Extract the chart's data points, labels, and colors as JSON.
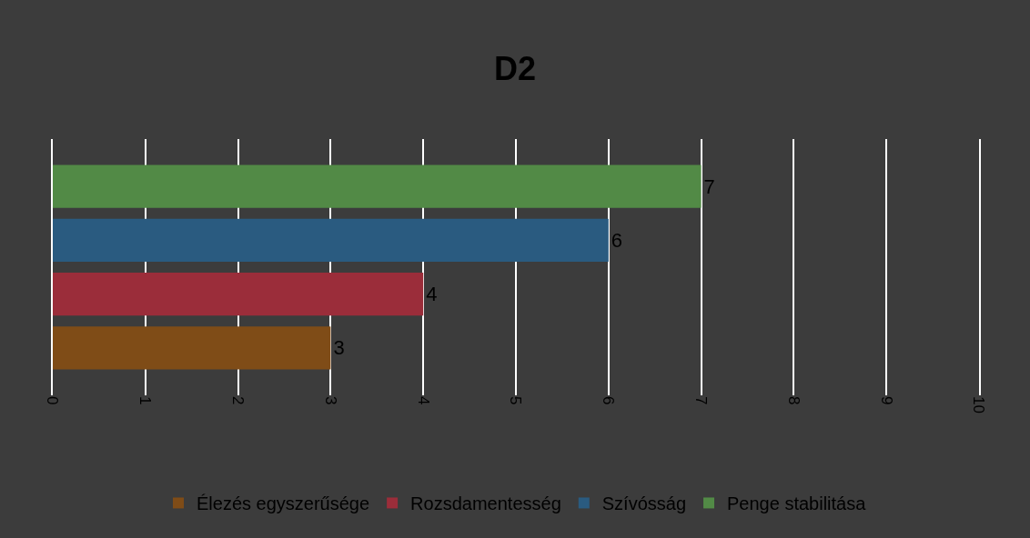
{
  "chart_data": {
    "type": "bar",
    "title": "D2",
    "orientation": "horizontal",
    "categories": [
      null
    ],
    "series": [
      {
        "name": "Élezés egyszerűsége",
        "color": "#7f4c17",
        "values": [
          3
        ]
      },
      {
        "name": "Rozsdamentesség",
        "color": "#9b2d3a",
        "values": [
          4
        ]
      },
      {
        "name": "Szívósság",
        "color": "#2a5b80",
        "values": [
          6
        ]
      },
      {
        "name": "Penge stabilitása",
        "color": "#528a46",
        "values": [
          7
        ]
      }
    ],
    "xlim": [
      0,
      10
    ],
    "xticks": [
      0,
      1,
      2,
      3,
      4,
      5,
      6,
      7,
      8,
      9,
      10
    ],
    "grid": "x",
    "legend": "bottom",
    "data_labels": true,
    "tick_labels": "x"
  }
}
